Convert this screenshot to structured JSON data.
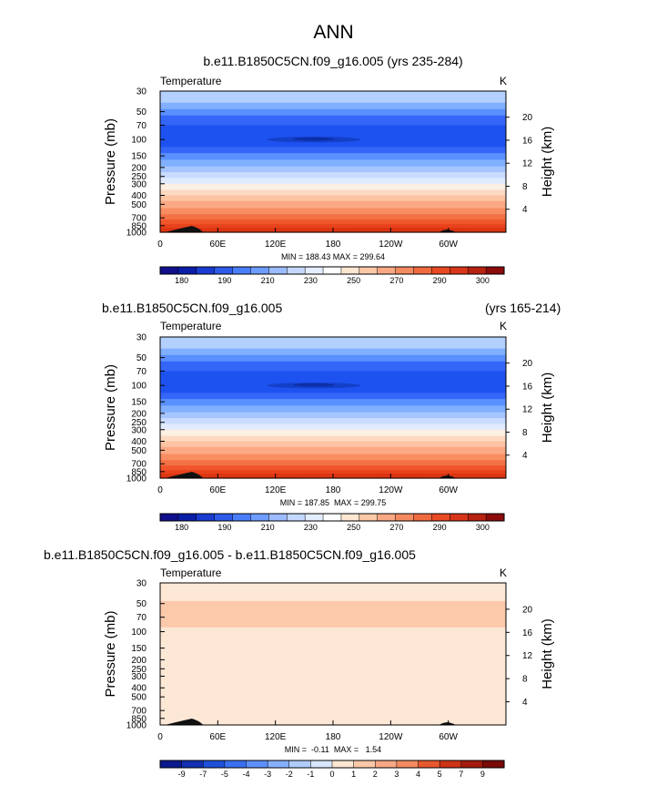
{
  "figure": {
    "title": "ANN"
  },
  "chart_data": [
    {
      "type": "heatmap",
      "title": "b.e11.B1850C5CN.f09_g16.005 (yrs 235-284)",
      "variable_label": "Temperature",
      "units": "K",
      "ylabel": "Pressure (mb)",
      "ylabel_right": "Height (km)",
      "xticks": [
        "0",
        "60E",
        "120E",
        "180",
        "120W",
        "60W"
      ],
      "xtick_positions_deg": [
        0,
        60,
        120,
        180,
        240,
        300
      ],
      "xlim_deg": [
        0,
        360
      ],
      "yticks": [
        30,
        50,
        70,
        100,
        150,
        200,
        250,
        300,
        400,
        500,
        700,
        850,
        1000
      ],
      "ylim_mb": [
        30,
        1000
      ],
      "height_ticks_km": [
        4,
        8,
        12,
        16,
        20
      ],
      "min_max_label": "MIN = 188.43  MAX = 299.64",
      "min": 188.43,
      "max": 299.64,
      "colorbar_labels": [
        "180",
        "190",
        "210",
        "230",
        "250",
        "270",
        "290",
        "300"
      ],
      "band_bounds_mb": [
        30,
        40,
        47,
        55,
        70,
        82,
        95,
        105,
        120,
        140,
        165,
        195,
        225,
        260,
        300,
        350,
        400,
        460,
        550,
        640,
        730,
        820,
        900,
        1000
      ],
      "band_colors": [
        "#b3d0ff",
        "#80b0ff",
        "#5a90ff",
        "#3466f8",
        "#1e52f0",
        "#1e52f0",
        "#1e52f0",
        "#1e52f0",
        "#3466f8",
        "#5a90ff",
        "#80b0ff",
        "#a6c5ff",
        "#c9dcff",
        "#e0ebff",
        "#fcefe3",
        "#fdd9c2",
        "#fcc4a3",
        "#faa984",
        "#f88d62",
        "#f47145",
        "#f0552c",
        "#e8421c",
        "#d83010"
      ],
      "blob_label": "cold core near 100 mb"
    },
    {
      "type": "heatmap",
      "title_left": "b.e11.B1850C5CN.f09_g16.005",
      "title_right": "(yrs 165-214)",
      "variable_label": "Temperature",
      "units": "K",
      "ylabel": "Pressure (mb)",
      "ylabel_right": "Height (km)",
      "xticks": [
        "0",
        "60E",
        "120E",
        "180",
        "120W",
        "60W"
      ],
      "xtick_positions_deg": [
        0,
        60,
        120,
        180,
        240,
        300
      ],
      "xlim_deg": [
        0,
        360
      ],
      "yticks": [
        30,
        50,
        70,
        100,
        150,
        200,
        250,
        300,
        400,
        500,
        700,
        850,
        1000
      ],
      "ylim_mb": [
        30,
        1000
      ],
      "height_ticks_km": [
        4,
        8,
        12,
        16,
        20
      ],
      "min_max_label": "MIN = 187.85  MAX = 299.75",
      "min": 187.85,
      "max": 299.75,
      "colorbar_labels": [
        "180",
        "190",
        "210",
        "230",
        "250",
        "270",
        "290",
        "300"
      ],
      "band_bounds_mb": [
        30,
        40,
        47,
        55,
        70,
        82,
        95,
        105,
        120,
        140,
        165,
        195,
        225,
        260,
        300,
        350,
        400,
        460,
        550,
        640,
        730,
        820,
        900,
        1000
      ],
      "band_colors": [
        "#b3d0ff",
        "#80b0ff",
        "#5a90ff",
        "#3466f8",
        "#1e52f0",
        "#1e52f0",
        "#1e52f0",
        "#1e52f0",
        "#3466f8",
        "#5a90ff",
        "#80b0ff",
        "#a6c5ff",
        "#c9dcff",
        "#e0ebff",
        "#fcefe3",
        "#fdd9c2",
        "#fcc4a3",
        "#faa984",
        "#f88d62",
        "#f47145",
        "#f0552c",
        "#e8421c",
        "#d83010"
      ],
      "blob_label": "cold core near 100 mb"
    },
    {
      "type": "heatmap",
      "title": "b.e11.B1850C5CN.f09_g16.005 - b.e11.B1850C5CN.f09_g16.005",
      "variable_label": "Temperature",
      "units": "K",
      "ylabel": "Pressure (mb)",
      "ylabel_right": "Height (km)",
      "xticks": [
        "0",
        "60E",
        "120E",
        "180",
        "120W",
        "60W"
      ],
      "xtick_positions_deg": [
        0,
        60,
        120,
        180,
        240,
        300
      ],
      "xlim_deg": [
        0,
        360
      ],
      "yticks": [
        30,
        50,
        70,
        100,
        150,
        200,
        250,
        300,
        400,
        500,
        700,
        850,
        1000
      ],
      "ylim_mb": [
        30,
        1000
      ],
      "height_ticks_km": [
        4,
        8,
        12,
        16,
        20
      ],
      "min_max_label": "MIN =  -0.11  MAX =   1.54",
      "min": -0.11,
      "max": 1.54,
      "colorbar_labels": [
        "-9",
        "-7",
        "-5",
        "-4",
        "-3",
        "-2",
        "-1",
        "0",
        "1",
        "2",
        "3",
        "4",
        "5",
        "7",
        "9"
      ],
      "band_bounds_mb": [
        30,
        47,
        90,
        1000
      ],
      "band_colors": [
        "#fde8d6",
        "#fcc9ab",
        "#fde8d6"
      ]
    }
  ],
  "colors": {
    "absolute_colorbar": [
      "#10108c",
      "#0a1ea8",
      "#1a3cd0",
      "#2e5ae8",
      "#4a7ef8",
      "#6e9cff",
      "#9cbcff",
      "#c4d8ff",
      "#e4eeff",
      "#ffffff",
      "#fde6d2",
      "#fbc8a8",
      "#f8a884",
      "#f48a60",
      "#f06a40",
      "#e84a24",
      "#d8361a",
      "#b82210",
      "#8c0c0c"
    ],
    "diff_colorbar": [
      "#0a1a8c",
      "#1230b0",
      "#2050d8",
      "#3a70f0",
      "#5e90fc",
      "#86b0ff",
      "#b0ccff",
      "#d8e6ff",
      "#fde6d2",
      "#fbc8a8",
      "#f8a884",
      "#f48a60",
      "#e8582e",
      "#cc3416",
      "#a21a0c",
      "#7a0a08"
    ],
    "terrain": "#111111"
  }
}
